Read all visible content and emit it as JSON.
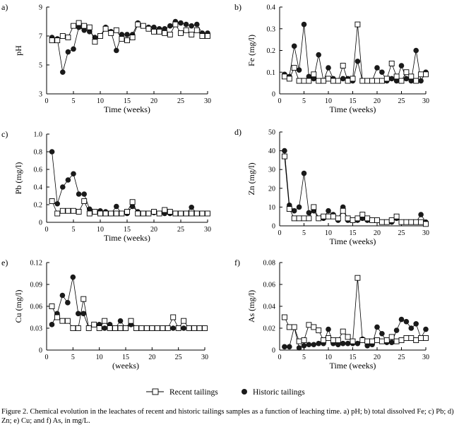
{
  "caption": "Figure 2. Chemical evolution in the leachates of recent and historic tailings samples as a function of leaching time. a) pH; b) total dissolved Fe; c) Pb; d) Zn; e) Cu; and f) As, in mg/L.",
  "legend": {
    "recent_label": "Recent tailings",
    "historic_label": "Historic tailings"
  },
  "colors": {
    "axis": "#000000",
    "recent_fill": "#ffffff",
    "historic_fill": "#1a1a1a"
  },
  "chart_data": [
    {
      "panel": "a)",
      "type": "line",
      "xlabel": "Time (weeks)",
      "ylabel": "pH",
      "xlim": [
        0,
        30
      ],
      "ylim": [
        3,
        9
      ],
      "xticks": [
        0,
        5,
        10,
        15,
        20,
        25,
        30
      ],
      "yticks": [
        3,
        5,
        7,
        9
      ],
      "series": [
        {
          "name": "Recent tailings",
          "x": [
            1,
            2,
            3,
            4,
            5,
            6,
            7,
            8,
            9,
            10,
            11,
            12,
            13,
            14,
            15,
            16,
            17,
            18,
            19,
            20,
            21,
            22,
            23,
            24,
            25,
            26,
            27,
            28,
            29,
            30
          ],
          "values": [
            6.7,
            6.7,
            7.0,
            6.9,
            7.7,
            7.9,
            7.7,
            7.6,
            6.6,
            7.0,
            7.5,
            7.2,
            7.4,
            6.8,
            6.7,
            6.9,
            7.8,
            7.7,
            7.5,
            7.3,
            7.3,
            7.2,
            7.1,
            7.8,
            7.2,
            7.4,
            7.1,
            7.4,
            7.0,
            7.0
          ]
        },
        {
          "name": "Historic tailings",
          "x": [
            1,
            2,
            3,
            4,
            5,
            6,
            7,
            8,
            9,
            10,
            11,
            12,
            13,
            14,
            15,
            16,
            17,
            18,
            19,
            20,
            21,
            22,
            23,
            24,
            25,
            26,
            27,
            28,
            29,
            30
          ],
          "values": [
            6.9,
            6.8,
            4.5,
            5.9,
            6.1,
            7.6,
            7.4,
            7.3,
            6.9,
            7.0,
            7.6,
            7.3,
            6.0,
            7.1,
            7.1,
            7.1,
            7.9,
            7.7,
            7.6,
            7.6,
            7.5,
            7.5,
            7.7,
            8.0,
            7.9,
            7.8,
            7.7,
            7.8,
            7.2,
            7.2
          ]
        }
      ]
    },
    {
      "panel": "b)",
      "type": "line",
      "xlabel": "Time (weeks)",
      "ylabel": "Fe (mg/l)",
      "xlim": [
        0,
        30
      ],
      "ylim": [
        0,
        0.4
      ],
      "xticks": [
        0,
        5,
        10,
        15,
        20,
        25,
        30
      ],
      "yticks": [
        0,
        0.1,
        0.2,
        0.3,
        0.4
      ],
      "series": [
        {
          "name": "Recent tailings",
          "x": [
            1,
            2,
            3,
            4,
            5,
            6,
            7,
            8,
            9,
            10,
            11,
            12,
            13,
            14,
            15,
            16,
            17,
            18,
            19,
            20,
            21,
            22,
            23,
            24,
            25,
            26,
            27,
            28,
            29,
            30
          ],
          "values": [
            0.08,
            0.07,
            0.12,
            0.06,
            0.06,
            0.06,
            0.09,
            0.06,
            0.06,
            0.07,
            0.06,
            0.06,
            0.13,
            0.06,
            0.07,
            0.32,
            0.06,
            0.06,
            0.06,
            0.06,
            0.06,
            0.07,
            0.14,
            0.08,
            0.06,
            0.1,
            0.08,
            0.06,
            0.09,
            0.09
          ]
        },
        {
          "name": "Historic tailings",
          "x": [
            1,
            2,
            3,
            4,
            5,
            6,
            7,
            8,
            9,
            10,
            11,
            12,
            13,
            14,
            15,
            16,
            17,
            18,
            19,
            20,
            21,
            22,
            23,
            24,
            25,
            26,
            27,
            28,
            29,
            30
          ],
          "values": [
            0.09,
            0.08,
            0.22,
            0.11,
            0.32,
            0.08,
            0.07,
            0.18,
            0.06,
            0.12,
            0.07,
            0.06,
            0.07,
            0.07,
            0.06,
            0.15,
            0.06,
            0.06,
            0.06,
            0.12,
            0.1,
            0.06,
            0.07,
            0.06,
            0.13,
            0.07,
            0.06,
            0.2,
            0.06,
            0.1
          ]
        }
      ]
    },
    {
      "panel": "c)",
      "type": "line",
      "xlabel": "Time (weeks)",
      "ylabel": "Pb (mg/l)",
      "xlim": [
        0,
        30
      ],
      "ylim": [
        0,
        1.0
      ],
      "xticks": [
        0,
        5,
        10,
        15,
        20,
        25,
        30
      ],
      "yticks": [
        0,
        0.2,
        0.4,
        0.6,
        0.8,
        1.0
      ],
      "ytick_labels": [
        "0",
        "0.2",
        "0.4",
        "0.6",
        "0.8",
        "1.0"
      ],
      "series": [
        {
          "name": "Recent tailings",
          "x": [
            1,
            2,
            3,
            4,
            5,
            6,
            7,
            8,
            9,
            10,
            11,
            12,
            13,
            14,
            15,
            16,
            17,
            18,
            19,
            20,
            21,
            22,
            23,
            24,
            25,
            26,
            27,
            28,
            29,
            30
          ],
          "values": [
            0.24,
            0.1,
            0.13,
            0.13,
            0.13,
            0.12,
            0.24,
            0.1,
            0.12,
            0.1,
            0.1,
            0.1,
            0.1,
            0.1,
            0.12,
            0.23,
            0.1,
            0.1,
            0.1,
            0.12,
            0.1,
            0.14,
            0.12,
            0.1,
            0.1,
            0.1,
            0.1,
            0.1,
            0.1,
            0.1
          ]
        },
        {
          "name": "Historic tailings",
          "x": [
            1,
            2,
            3,
            4,
            5,
            6,
            7,
            8,
            9,
            10,
            11,
            12,
            13,
            14,
            15,
            16,
            17,
            18,
            19,
            20,
            21,
            22,
            23,
            24,
            25,
            26,
            27,
            28,
            29,
            30
          ],
          "values": [
            0.8,
            0.21,
            0.4,
            0.48,
            0.55,
            0.32,
            0.32,
            0.15,
            0.12,
            0.13,
            0.12,
            0.1,
            0.18,
            0.1,
            0.1,
            0.18,
            0.12,
            0.1,
            0.1,
            0.11,
            0.1,
            0.1,
            0.1,
            0.1,
            0.1,
            0.1,
            0.17,
            0.1,
            0.1,
            0.1
          ]
        }
      ]
    },
    {
      "panel": "d)",
      "type": "line",
      "xlabel": "Time (weeks)",
      "ylabel": "Zn (mg/l)",
      "xlim": [
        0,
        30
      ],
      "ylim": [
        0,
        50
      ],
      "xticks": [
        0,
        5,
        10,
        15,
        20,
        25,
        30
      ],
      "yticks": [
        0,
        10,
        20,
        30,
        40,
        50
      ],
      "series": [
        {
          "name": "Recent tailings",
          "x": [
            1,
            2,
            3,
            4,
            5,
            6,
            7,
            8,
            9,
            10,
            11,
            12,
            13,
            14,
            15,
            16,
            17,
            18,
            19,
            20,
            21,
            22,
            23,
            24,
            25,
            26,
            27,
            28,
            29,
            30
          ],
          "values": [
            37,
            9,
            4,
            4,
            4,
            4,
            10,
            4,
            5,
            5,
            5,
            4,
            8,
            4,
            3,
            4,
            6,
            4,
            3,
            3,
            2,
            2,
            3,
            5,
            2,
            2,
            2,
            2,
            2,
            1
          ]
        },
        {
          "name": "Historic tailings",
          "x": [
            1,
            2,
            3,
            4,
            5,
            6,
            7,
            8,
            9,
            10,
            11,
            12,
            13,
            14,
            15,
            16,
            17,
            18,
            19,
            20,
            21,
            22,
            23,
            24,
            25,
            26,
            27,
            28,
            29,
            30
          ],
          "values": [
            40,
            11,
            8,
            10,
            28,
            7,
            8,
            4,
            4,
            8,
            6,
            3,
            10,
            3,
            3,
            3,
            4,
            3,
            3,
            3,
            2,
            2,
            2,
            4,
            2,
            2,
            2,
            2,
            6,
            2
          ]
        }
      ]
    },
    {
      "panel": "e)",
      "type": "line",
      "xlabel": "(weeks)",
      "ylabel": "Cu (mg/l)",
      "xlim": [
        0,
        30
      ],
      "ylim": [
        0,
        0.12
      ],
      "xticks": [
        0,
        5,
        10,
        15,
        20,
        25,
        30
      ],
      "yticks": [
        0,
        0.03,
        0.06,
        0.09,
        0.12
      ],
      "series": [
        {
          "name": "Recent tailings",
          "x": [
            1,
            2,
            3,
            4,
            5,
            6,
            7,
            8,
            9,
            10,
            11,
            12,
            13,
            14,
            15,
            16,
            17,
            18,
            19,
            20,
            21,
            22,
            23,
            24,
            25,
            26,
            27,
            28,
            29,
            30
          ],
          "values": [
            0.06,
            0.045,
            0.04,
            0.04,
            0.03,
            0.03,
            0.07,
            0.03,
            0.035,
            0.03,
            0.04,
            0.03,
            0.03,
            0.03,
            0.03,
            0.04,
            0.03,
            0.03,
            0.03,
            0.03,
            0.03,
            0.03,
            0.03,
            0.045,
            0.03,
            0.04,
            0.03,
            0.03,
            0.03,
            0.03
          ]
        },
        {
          "name": "Historic tailings",
          "x": [
            1,
            2,
            3,
            4,
            5,
            6,
            7,
            8,
            9,
            10,
            11,
            12,
            13,
            14,
            15,
            16,
            17,
            18,
            19,
            20,
            21,
            22,
            23,
            24,
            25,
            26,
            27,
            28,
            29,
            30
          ],
          "values": [
            0.035,
            0.05,
            0.075,
            0.065,
            0.1,
            0.05,
            0.05,
            0.03,
            0.035,
            0.035,
            0.03,
            0.035,
            0.03,
            0.04,
            0.03,
            0.035,
            0.03,
            0.03,
            0.03,
            0.03,
            0.03,
            0.03,
            0.03,
            0.03,
            0.03,
            0.03,
            0.03,
            0.03,
            0.03,
            0.03
          ]
        }
      ]
    },
    {
      "panel": "f)",
      "type": "line",
      "xlabel": "Time (weeks)",
      "ylabel": "As (mg/l)",
      "xlim": [
        0,
        30
      ],
      "ylim": [
        0,
        0.08
      ],
      "xticks": [
        0,
        5,
        10,
        15,
        20,
        25,
        30
      ],
      "yticks": [
        0,
        0.02,
        0.04,
        0.06,
        0.08
      ],
      "series": [
        {
          "name": "Recent tailings",
          "x": [
            1,
            2,
            3,
            4,
            5,
            6,
            7,
            8,
            9,
            10,
            11,
            12,
            13,
            14,
            15,
            16,
            17,
            18,
            19,
            20,
            21,
            22,
            23,
            24,
            25,
            26,
            27,
            28,
            29,
            30
          ],
          "values": [
            0.03,
            0.021,
            0.021,
            0.008,
            0.009,
            0.023,
            0.021,
            0.018,
            0.009,
            0.011,
            0.009,
            0.009,
            0.017,
            0.012,
            0.008,
            0.066,
            0.009,
            0.008,
            0.008,
            0.009,
            0.008,
            0.009,
            0.012,
            0.008,
            0.009,
            0.011,
            0.011,
            0.009,
            0.011,
            0.011
          ]
        },
        {
          "name": "Historic tailings",
          "x": [
            1,
            2,
            3,
            4,
            5,
            6,
            7,
            8,
            9,
            10,
            11,
            12,
            13,
            14,
            15,
            16,
            17,
            18,
            19,
            20,
            21,
            22,
            23,
            24,
            25,
            26,
            27,
            28,
            29,
            30
          ],
          "values": [
            0.003,
            0.003,
            0.021,
            0.002,
            0.004,
            0.005,
            0.005,
            0.006,
            0.006,
            0.019,
            0.006,
            0.005,
            0.006,
            0.006,
            0.006,
            0.006,
            0.01,
            0.004,
            0.005,
            0.021,
            0.015,
            0.007,
            0.007,
            0.018,
            0.028,
            0.026,
            0.02,
            0.024,
            0.011,
            0.019
          ]
        }
      ]
    }
  ]
}
